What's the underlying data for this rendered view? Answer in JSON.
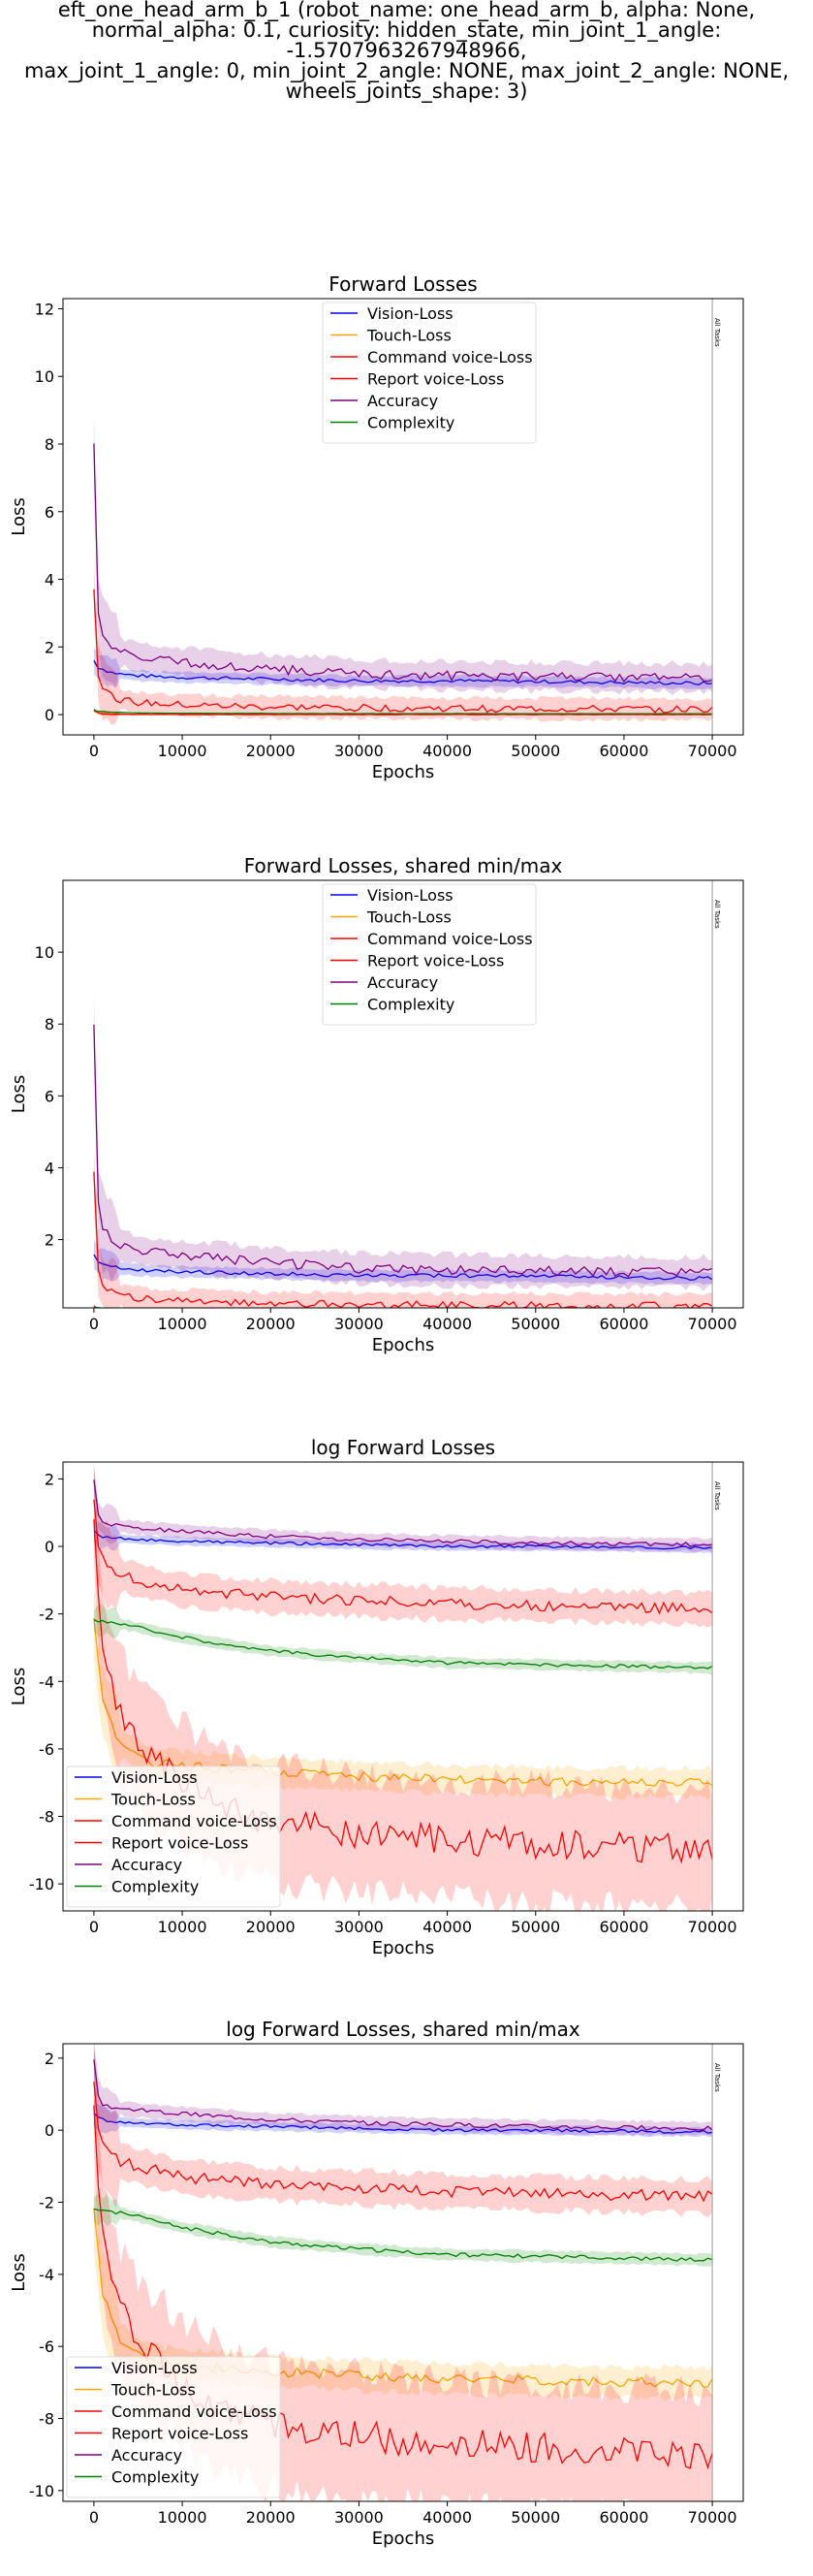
{
  "figure": {
    "suptitle_lines": [
      "eft_one_head_arm_b_1 (robot_name: one_head_arm_b, alpha: None,",
      "normal_alpha: 0.1, curiosity: hidden_state, min_joint_1_angle: -1.5707963267948966,",
      "max_joint_1_angle: 0, min_joint_2_angle: NONE, max_joint_2_angle: NONE,",
      "wheels_joints_shape: 3)"
    ],
    "vline_label": "All Tasks",
    "colors": {
      "vision": "#0000ff",
      "touch": "#ffa500",
      "command": "#ff0000",
      "report": "#ff0000",
      "accuracy": "#800080",
      "complexity": "#008000"
    }
  },
  "chart_data": [
    {
      "type": "line",
      "title": "Forward Losses",
      "xlabel": "Epochs",
      "ylabel": "Loss",
      "xlim": [
        -3500,
        73500
      ],
      "ylim": [
        -0.6,
        12.3
      ],
      "xticks": [
        0,
        10000,
        20000,
        30000,
        40000,
        50000,
        60000,
        70000
      ],
      "yticks": [
        0,
        2,
        4,
        6,
        8,
        10,
        12
      ],
      "vline_x": 70000,
      "legend_position": "upper center",
      "series": [
        {
          "name": "Vision-Loss",
          "color": "#0000ff",
          "x": [
            0,
            500,
            1000,
            2000,
            3000,
            5000,
            10000,
            20000,
            30000,
            40000,
            50000,
            60000,
            70000
          ],
          "y": [
            1.6,
            1.4,
            1.35,
            1.25,
            1.2,
            1.15,
            1.1,
            1.05,
            1.0,
            1.0,
            0.98,
            0.95,
            0.92
          ],
          "band": 0.15
        },
        {
          "name": "Touch-Loss",
          "color": "#ffa500",
          "x": [
            0,
            500,
            1000,
            2000,
            5000,
            10000,
            20000,
            30000,
            40000,
            50000,
            60000,
            70000
          ],
          "y": [
            0.1,
            0.05,
            0.03,
            0.02,
            0.01,
            0.01,
            0.01,
            0.01,
            0.01,
            0.01,
            0.01,
            0.01
          ],
          "band": 0.02
        },
        {
          "name": "Command voice-Loss",
          "color": "#ff0000",
          "x": [
            0,
            500,
            1000,
            2000,
            5000,
            10000,
            20000,
            30000,
            40000,
            50000,
            60000,
            70000
          ],
          "y": [
            0.15,
            0.05,
            0.02,
            0.01,
            0.005,
            0.003,
            0.002,
            0.002,
            0.002,
            0.002,
            0.002,
            0.002
          ],
          "band": 0.02
        },
        {
          "name": "Report voice-Loss",
          "color": "#ff0000",
          "x": [
            0,
            200,
            500,
            1000,
            2000,
            3000,
            5000,
            10000,
            20000,
            30000,
            40000,
            50000,
            60000,
            70000
          ],
          "y": [
            3.8,
            2.2,
            1.2,
            0.8,
            0.55,
            0.45,
            0.35,
            0.28,
            0.22,
            0.2,
            0.18,
            0.17,
            0.16,
            0.15
          ],
          "band": 0.3
        },
        {
          "name": "Accuracy",
          "color": "#800080",
          "x": [
            0,
            200,
            500,
            1000,
            2000,
            3000,
            5000,
            10000,
            20000,
            30000,
            40000,
            50000,
            60000,
            70000
          ],
          "y": [
            8.0,
            5.0,
            3.0,
            2.3,
            2.0,
            1.85,
            1.7,
            1.55,
            1.35,
            1.2,
            1.15,
            1.12,
            1.1,
            1.08
          ],
          "band": 0.4
        },
        {
          "name": "Complexity",
          "color": "#008000",
          "x": [
            0,
            500,
            1000,
            2000,
            5000,
            10000,
            20000,
            30000,
            40000,
            50000,
            60000,
            70000
          ],
          "y": [
            0.11,
            0.1,
            0.09,
            0.07,
            0.05,
            0.04,
            0.035,
            0.03,
            0.03,
            0.028,
            0.027,
            0.026
          ],
          "band": 0.01
        }
      ]
    },
    {
      "type": "line",
      "title": "Forward Losses, shared min/max",
      "xlabel": "Epochs",
      "ylabel": "Loss",
      "xlim": [
        -3500,
        73500
      ],
      "ylim": [
        0.1,
        12.0
      ],
      "xticks": [
        0,
        10000,
        20000,
        30000,
        40000,
        50000,
        60000,
        70000
      ],
      "yticks": [
        2,
        4,
        6,
        8,
        10
      ],
      "vline_x": 70000,
      "legend_position": "upper center",
      "series": [
        {
          "name": "Vision-Loss",
          "color": "#0000ff",
          "x": [
            0,
            500,
            1000,
            2000,
            3000,
            5000,
            10000,
            20000,
            30000,
            40000,
            50000,
            60000,
            70000
          ],
          "y": [
            1.6,
            1.4,
            1.35,
            1.25,
            1.2,
            1.15,
            1.1,
            1.05,
            1.0,
            1.0,
            0.98,
            0.95,
            0.92
          ],
          "band": 0.15
        },
        {
          "name": "Touch-Loss",
          "color": "#ffa500",
          "x": [
            0,
            500,
            1000,
            2000,
            5000,
            10000,
            20000,
            30000,
            40000,
            50000,
            60000,
            70000
          ],
          "y": [
            0.1,
            0.05,
            0.03,
            0.02,
            0.01,
            0.01,
            0.01,
            0.01,
            0.01,
            0.01,
            0.01,
            0.01
          ],
          "band": 0.02
        },
        {
          "name": "Command voice-Loss",
          "color": "#ff0000",
          "x": [
            0,
            500,
            1000,
            2000,
            5000,
            10000,
            20000,
            30000,
            40000,
            50000,
            60000,
            70000
          ],
          "y": [
            0.15,
            0.05,
            0.02,
            0.01,
            0.005,
            0.003,
            0.002,
            0.002,
            0.002,
            0.002,
            0.002,
            0.002
          ],
          "band": 0.02
        },
        {
          "name": "Report voice-Loss",
          "color": "#ff0000",
          "x": [
            0,
            200,
            500,
            1000,
            2000,
            3000,
            5000,
            10000,
            20000,
            30000,
            40000,
            50000,
            60000,
            70000
          ],
          "y": [
            3.8,
            2.2,
            1.2,
            0.8,
            0.55,
            0.45,
            0.35,
            0.28,
            0.22,
            0.2,
            0.18,
            0.17,
            0.16,
            0.15
          ],
          "band": 0.3
        },
        {
          "name": "Accuracy",
          "color": "#800080",
          "x": [
            0,
            200,
            500,
            1000,
            2000,
            3000,
            5000,
            10000,
            20000,
            30000,
            40000,
            50000,
            60000,
            70000
          ],
          "y": [
            8.0,
            5.0,
            3.0,
            2.3,
            2.0,
            1.85,
            1.7,
            1.55,
            1.35,
            1.2,
            1.15,
            1.12,
            1.1,
            1.08
          ],
          "band": 0.4
        },
        {
          "name": "Complexity",
          "color": "#008000",
          "x": [
            0,
            500,
            1000,
            2000,
            5000,
            10000,
            20000,
            30000,
            40000,
            50000,
            60000,
            70000
          ],
          "y": [
            0.11,
            0.1,
            0.09,
            0.07,
            0.05,
            0.04,
            0.035,
            0.03,
            0.03,
            0.028,
            0.027,
            0.026
          ],
          "band": 0.01
        }
      ]
    },
    {
      "type": "line",
      "title": "log Forward Losses",
      "xlabel": "Epochs",
      "ylabel": "Loss",
      "xlim": [
        -3500,
        73500
      ],
      "ylim": [
        -10.8,
        2.5
      ],
      "xticks": [
        0,
        10000,
        20000,
        30000,
        40000,
        50000,
        60000,
        70000
      ],
      "yticks": [
        -10,
        -8,
        -6,
        -4,
        -2,
        0,
        2
      ],
      "vline_x": 70000,
      "legend_position": "lower left",
      "series": [
        {
          "name": "Vision-Loss",
          "color": "#0000ff",
          "x": [
            0,
            500,
            1000,
            2000,
            5000,
            10000,
            20000,
            30000,
            40000,
            50000,
            60000,
            70000
          ],
          "y": [
            0.5,
            0.35,
            0.3,
            0.25,
            0.2,
            0.15,
            0.1,
            0.05,
            0.0,
            0.0,
            -0.03,
            -0.05
          ],
          "band": 0.12
        },
        {
          "name": "Touch-Loss",
          "color": "#ffa500",
          "x": [
            0,
            500,
            1000,
            2000,
            3000,
            5000,
            7000,
            10000,
            15000,
            20000,
            30000,
            40000,
            50000,
            60000,
            70000
          ],
          "y": [
            -2.2,
            -3.5,
            -4.5,
            -5.3,
            -5.8,
            -6.2,
            -6.4,
            -6.5,
            -6.6,
            -6.7,
            -6.8,
            -6.9,
            -6.95,
            -7.0,
            -7.0
          ],
          "band": 0.4
        },
        {
          "name": "Command voice-Loss",
          "color": "#ff0000",
          "x": [
            0,
            500,
            1000,
            2000,
            3000,
            5000,
            7000,
            10000,
            15000,
            20000,
            30000,
            40000,
            50000,
            60000,
            70000
          ],
          "y": [
            1.0,
            -1.5,
            -3.0,
            -4.2,
            -5.0,
            -5.8,
            -6.4,
            -7.0,
            -7.8,
            -8.2,
            -8.5,
            -8.7,
            -8.8,
            -8.9,
            -9.0
          ],
          "band": 1.2
        },
        {
          "name": "Report voice-Loss",
          "color": "#ff0000",
          "x": [
            0,
            200,
            500,
            1000,
            2000,
            3000,
            5000,
            10000,
            20000,
            30000,
            40000,
            50000,
            60000,
            70000
          ],
          "y": [
            1.3,
            0.6,
            0.0,
            -0.4,
            -0.7,
            -0.85,
            -1.0,
            -1.3,
            -1.5,
            -1.6,
            -1.7,
            -1.75,
            -1.8,
            -1.85
          ],
          "band": 0.45
        },
        {
          "name": "Accuracy",
          "color": "#800080",
          "x": [
            0,
            200,
            500,
            1000,
            2000,
            3000,
            5000,
            10000,
            20000,
            30000,
            40000,
            50000,
            60000,
            70000
          ],
          "y": [
            2.0,
            1.3,
            0.9,
            0.75,
            0.65,
            0.6,
            0.55,
            0.45,
            0.3,
            0.2,
            0.15,
            0.1,
            0.07,
            0.05
          ],
          "band": 0.18
        },
        {
          "name": "Complexity",
          "color": "#008000",
          "x": [
            0,
            500,
            1000,
            2000,
            5000,
            10000,
            20000,
            30000,
            40000,
            50000,
            60000,
            70000
          ],
          "y": [
            -2.2,
            -2.2,
            -2.2,
            -2.25,
            -2.4,
            -2.7,
            -3.1,
            -3.3,
            -3.45,
            -3.5,
            -3.55,
            -3.6
          ],
          "band": 0.15
        }
      ]
    },
    {
      "type": "line",
      "title": "log Forward Losses, shared min/max",
      "xlabel": "Epochs",
      "ylabel": "Loss",
      "xlim": [
        -3500,
        73500
      ],
      "ylim": [
        -10.3,
        2.4
      ],
      "xticks": [
        0,
        10000,
        20000,
        30000,
        40000,
        50000,
        60000,
        70000
      ],
      "yticks": [
        -10,
        -8,
        -6,
        -4,
        -2,
        0,
        2
      ],
      "vline_x": 70000,
      "legend_position": "lower left",
      "series": [
        {
          "name": "Vision-Loss",
          "color": "#0000ff",
          "x": [
            0,
            500,
            1000,
            2000,
            5000,
            10000,
            20000,
            30000,
            40000,
            50000,
            60000,
            70000
          ],
          "y": [
            0.5,
            0.35,
            0.3,
            0.25,
            0.2,
            0.15,
            0.1,
            0.05,
            0.0,
            0.0,
            -0.03,
            -0.05
          ],
          "band": 0.12
        },
        {
          "name": "Touch-Loss",
          "color": "#ffa500",
          "x": [
            0,
            500,
            1000,
            2000,
            3000,
            5000,
            7000,
            10000,
            15000,
            20000,
            30000,
            40000,
            50000,
            60000,
            70000
          ],
          "y": [
            -2.2,
            -3.5,
            -4.5,
            -5.3,
            -5.8,
            -6.2,
            -6.4,
            -6.5,
            -6.6,
            -6.7,
            -6.8,
            -6.9,
            -6.95,
            -7.0,
            -7.0
          ],
          "band": 0.4
        },
        {
          "name": "Command voice-Loss",
          "color": "#ff0000",
          "x": [
            0,
            500,
            1000,
            2000,
            3000,
            5000,
            7000,
            10000,
            15000,
            20000,
            30000,
            40000,
            50000,
            60000,
            70000
          ],
          "y": [
            1.0,
            -1.5,
            -3.0,
            -4.2,
            -5.0,
            -5.8,
            -6.4,
            -7.0,
            -7.8,
            -8.2,
            -8.5,
            -8.7,
            -8.8,
            -8.9,
            -9.0
          ],
          "band": 1.2
        },
        {
          "name": "Report voice-Loss",
          "color": "#ff0000",
          "x": [
            0,
            200,
            500,
            1000,
            2000,
            3000,
            5000,
            10000,
            20000,
            30000,
            40000,
            50000,
            60000,
            70000
          ],
          "y": [
            1.3,
            0.6,
            0.0,
            -0.4,
            -0.7,
            -0.85,
            -1.0,
            -1.3,
            -1.5,
            -1.6,
            -1.7,
            -1.75,
            -1.8,
            -1.85
          ],
          "band": 0.45
        },
        {
          "name": "Accuracy",
          "color": "#800080",
          "x": [
            0,
            200,
            500,
            1000,
            2000,
            3000,
            5000,
            10000,
            20000,
            30000,
            40000,
            50000,
            60000,
            70000
          ],
          "y": [
            2.0,
            1.3,
            0.9,
            0.75,
            0.65,
            0.6,
            0.55,
            0.45,
            0.3,
            0.2,
            0.15,
            0.1,
            0.07,
            0.05
          ],
          "band": 0.18
        },
        {
          "name": "Complexity",
          "color": "#008000",
          "x": [
            0,
            500,
            1000,
            2000,
            5000,
            10000,
            20000,
            30000,
            40000,
            50000,
            60000,
            70000
          ],
          "y": [
            -2.2,
            -2.2,
            -2.2,
            -2.25,
            -2.4,
            -2.7,
            -3.1,
            -3.3,
            -3.45,
            -3.5,
            -3.55,
            -3.6
          ],
          "band": 0.15
        }
      ]
    }
  ]
}
